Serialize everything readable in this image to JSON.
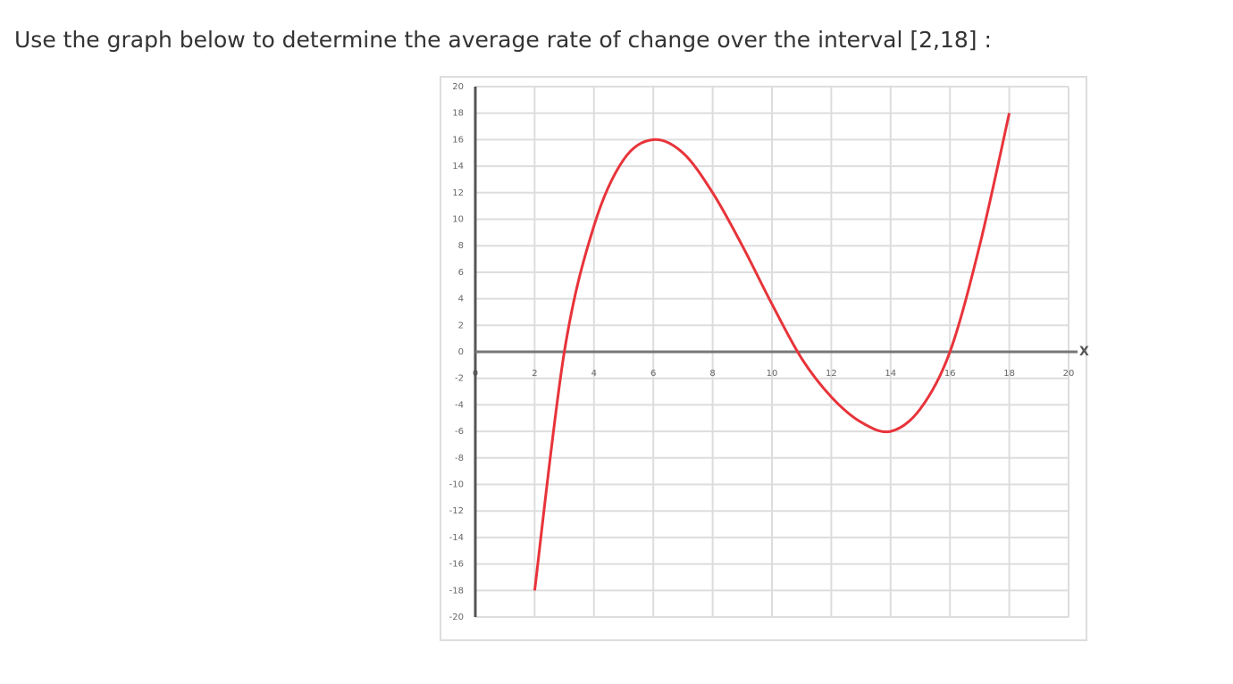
{
  "question": "Use the graph below to determine the average rate of change over the interval [2,18] :",
  "chart_data": {
    "type": "line",
    "x_label": "X",
    "x": [
      2,
      3,
      4,
      5,
      6,
      7,
      8,
      9,
      10,
      11,
      12,
      13,
      14,
      15,
      16,
      17,
      18
    ],
    "series": [
      {
        "color": "#e8333a",
        "values": [
          -18,
          0,
          9.5,
          14.5,
          16,
          15,
          12,
          8,
          3.6,
          -0.5,
          -3.4,
          -5.3,
          -6,
          -4.3,
          0,
          8,
          18
        ]
      }
    ],
    "xlim": [
      0,
      20
    ],
    "ylim": [
      -20,
      20
    ],
    "xticks": [
      0,
      2,
      4,
      6,
      8,
      10,
      12,
      14,
      16,
      18,
      20
    ],
    "yticks": [
      -20,
      -18,
      -16,
      -14,
      -12,
      -10,
      -8,
      -6,
      -4,
      -2,
      0,
      2,
      4,
      6,
      8,
      10,
      12,
      14,
      16,
      18,
      20
    ],
    "grid": true
  }
}
